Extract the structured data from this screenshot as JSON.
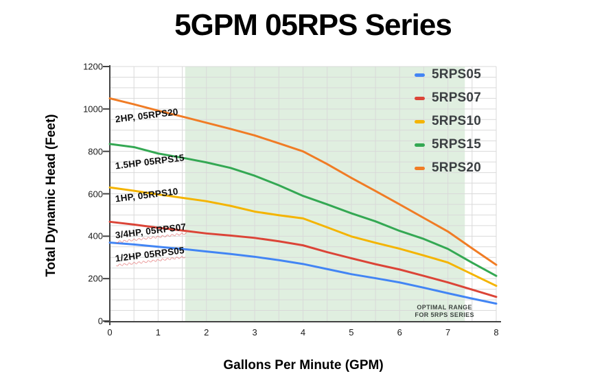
{
  "chart_data": {
    "type": "line",
    "title": "5GPM 05RPS Series",
    "xlabel": "Gallons Per Minute (GPM)",
    "ylabel": "Total Dynamic Head (Feet)",
    "xlim": [
      0,
      8
    ],
    "ylim": [
      0,
      1200
    ],
    "x_major_step": 1,
    "y_major_step": 200,
    "x_minor_step": 0.5,
    "y_minor_step": 50,
    "grid": true,
    "legend_position": "top-right-inside",
    "x": [
      0,
      0.5,
      1,
      1.5,
      2,
      2.5,
      3,
      3.5,
      4,
      4.5,
      5,
      5.5,
      6,
      6.5,
      7,
      7.5,
      8
    ],
    "series": [
      {
        "name": "5RPS05",
        "color": "#4285F4",
        "values": [
          370,
          361,
          350,
          340,
          328,
          316,
          303,
          287,
          269,
          245,
          221,
          202,
          182,
          157,
          131,
          106,
          82
        ]
      },
      {
        "name": "5RPS07",
        "color": "#DB4437",
        "values": [
          468,
          455,
          440,
          427,
          413,
          403,
          392,
          376,
          357,
          325,
          296,
          268,
          243,
          213,
          182,
          148,
          114
        ]
      },
      {
        "name": "5RPS10",
        "color": "#F4B400",
        "values": [
          630,
          614,
          597,
          581,
          565,
          543,
          516,
          499,
          484,
          442,
          399,
          369,
          341,
          309,
          276,
          221,
          166
        ]
      },
      {
        "name": "5RPS15",
        "color": "#34A853",
        "values": [
          835,
          820,
          790,
          770,
          748,
          722,
          685,
          640,
          590,
          550,
          508,
          470,
          425,
          387,
          340,
          275,
          213
        ]
      },
      {
        "name": "5RPS20",
        "color": "#F07C25",
        "values": [
          1050,
          1022,
          992,
          964,
          935,
          906,
          875,
          838,
          800,
          740,
          675,
          613,
          550,
          486,
          422,
          343,
          265
        ]
      }
    ],
    "band": {
      "x0": 1.56,
      "x1": 7.35,
      "color": "#E0EFE0",
      "label_line1": "OPTIMAL RANGE",
      "label_line2": "FOR 5RPS SERIES",
      "label_x": 6.93,
      "label_y": 45
    },
    "annotations": [
      {
        "text": "2HP, 05RPS20",
        "x": 0.11,
        "y": 950,
        "rotation": -7,
        "wavy": false
      },
      {
        "text": "1.5HP 05RPS15",
        "x": 0.11,
        "y": 730,
        "rotation": -7,
        "wavy": false
      },
      {
        "text": "1HP, 05RPS10",
        "x": 0.11,
        "y": 577,
        "rotation": -7,
        "wavy": false
      },
      {
        "text": "3/4HP, 05RPS07",
        "x": 0.11,
        "y": 405,
        "rotation": -7,
        "wavy": true
      },
      {
        "text": "1/2HP 05RPS05",
        "x": 0.11,
        "y": 295,
        "rotation": -7,
        "wavy": true
      }
    ],
    "colors": {
      "gridline": "#D9D9D9",
      "axis": "#424242",
      "tick_text": "#1a1a1a",
      "legend_text": "#3b3f42"
    }
  }
}
